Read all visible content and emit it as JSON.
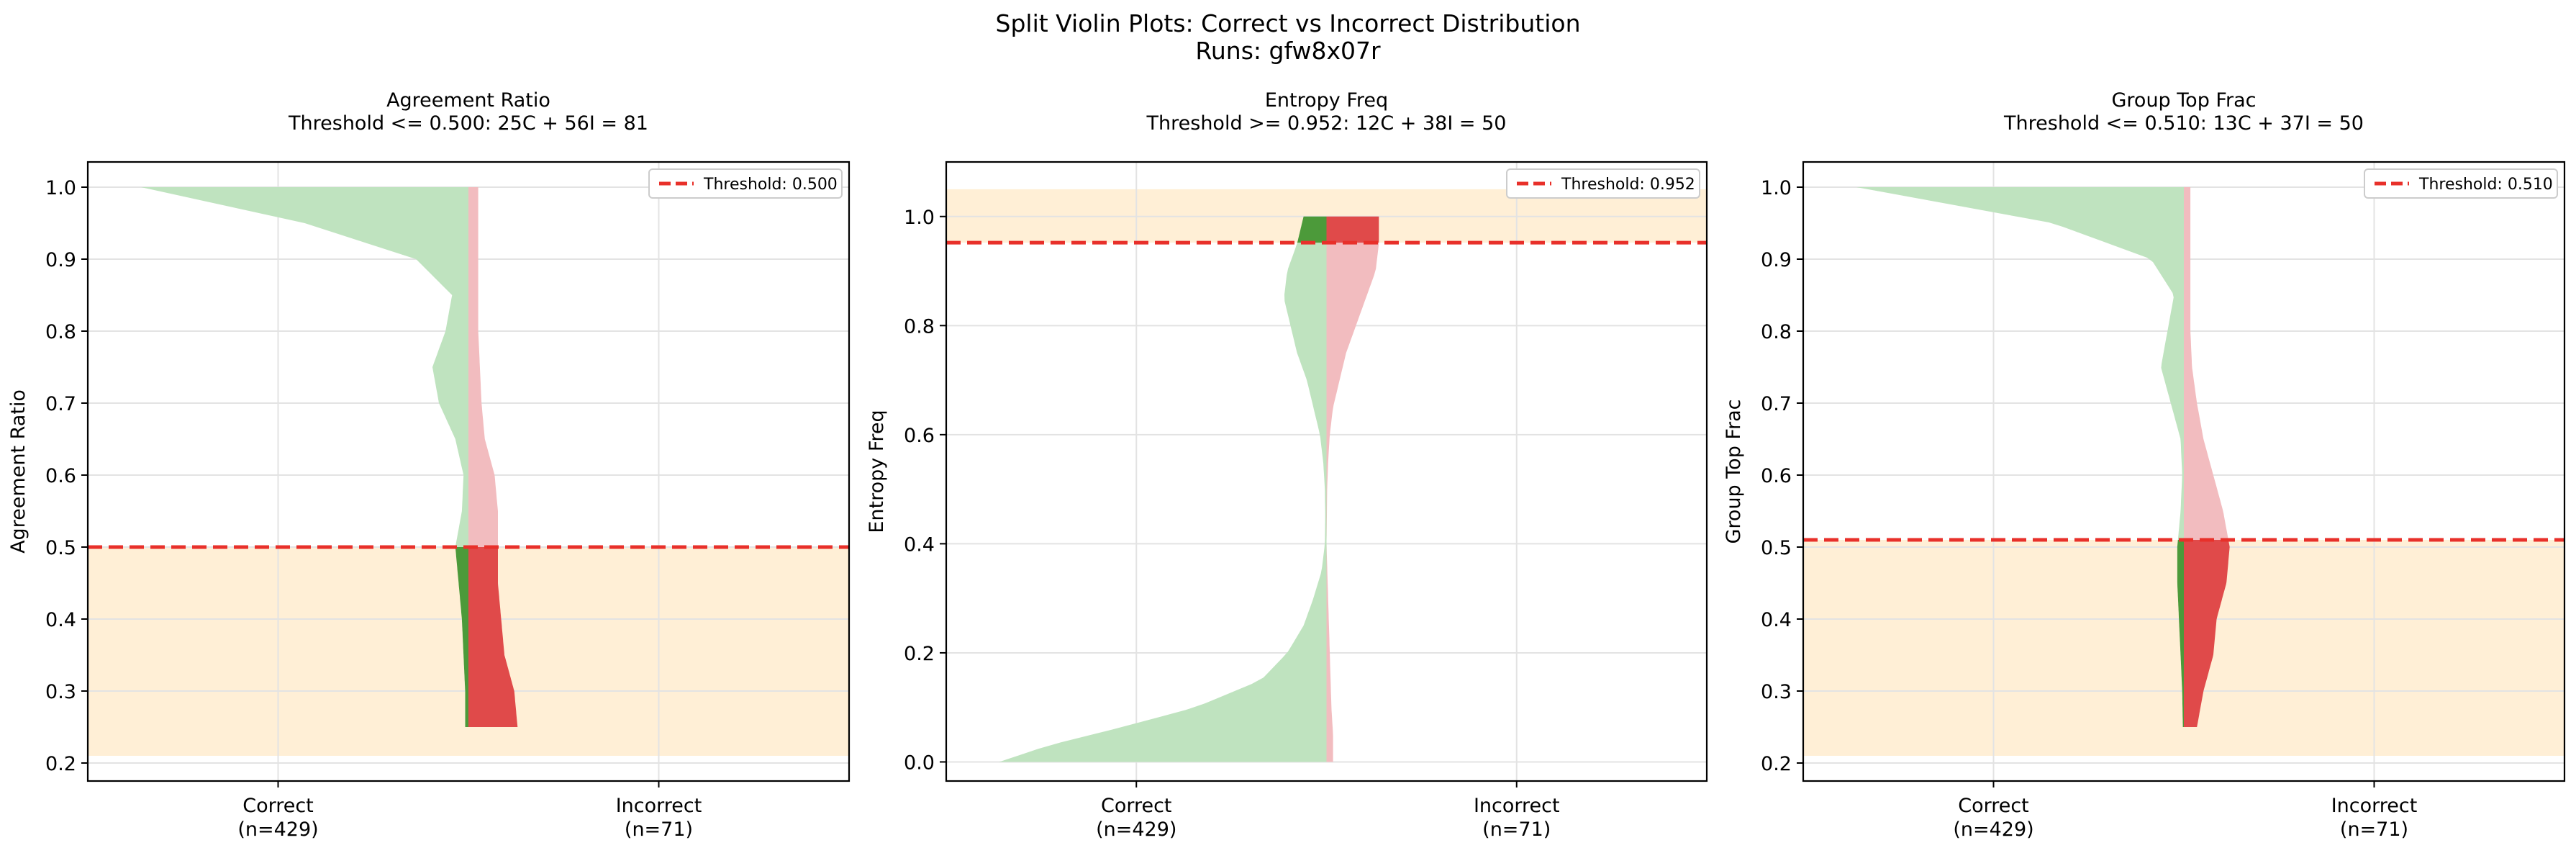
{
  "suptitle": "Split Violin Plots: Correct vs Incorrect Distribution",
  "subtitle": "Runs: gfw8x07r",
  "chart_data": [
    {
      "type": "split-violin",
      "title": "Agreement Ratio",
      "subtitle": "Threshold <= 0.500: 25C + 56I = 81",
      "ylabel": "Agreement Ratio",
      "categories": [
        "Correct\n(n=429)",
        "Incorrect\n(n=71)"
      ],
      "ylim": [
        0.175,
        1.035
      ],
      "yticks": [
        0.2,
        0.3,
        0.4,
        0.5,
        0.6,
        0.7,
        0.8,
        0.9,
        1.0
      ],
      "yticklabels": [
        "0.2",
        "0.3",
        "0.4",
        "0.5",
        "0.6",
        "0.7",
        "0.8",
        "0.9",
        "1.0"
      ],
      "threshold": 0.5,
      "threshold_dir": "<=",
      "band": [
        0.21,
        0.5
      ],
      "legend": "Threshold: 0.500",
      "legend_loc": "upper right",
      "grid": true,
      "series": [
        {
          "name": "Correct",
          "side": "left",
          "y": [
            0.25,
            0.3,
            0.35,
            0.4,
            0.45,
            0.5,
            0.55,
            0.6,
            0.65,
            0.7,
            0.75,
            0.8,
            0.85,
            0.9,
            0.95,
            1.0
          ],
          "width": [
            0.01,
            0.01,
            0.015,
            0.02,
            0.03,
            0.04,
            0.02,
            0.015,
            0.04,
            0.09,
            0.11,
            0.07,
            0.05,
            0.16,
            0.5,
            1.0
          ]
        },
        {
          "name": "Incorrect",
          "side": "right",
          "y": [
            0.25,
            0.3,
            0.35,
            0.4,
            0.45,
            0.5,
            0.55,
            0.6,
            0.65,
            0.7,
            0.75,
            0.8,
            0.85,
            0.9,
            0.95,
            1.0
          ],
          "width": [
            0.15,
            0.14,
            0.11,
            0.1,
            0.09,
            0.09,
            0.09,
            0.08,
            0.05,
            0.04,
            0.035,
            0.03,
            0.03,
            0.03,
            0.03,
            0.03
          ]
        }
      ]
    },
    {
      "type": "split-violin",
      "title": "Entropy Freq",
      "subtitle": "Threshold >= 0.952: 12C + 38I = 50",
      "ylabel": "Entropy Freq",
      "categories": [
        "Correct\n(n=429)",
        "Incorrect\n(n=71)"
      ],
      "ylim": [
        -0.035,
        1.1
      ],
      "yticks": [
        0.0,
        0.2,
        0.4,
        0.6,
        0.8,
        1.0
      ],
      "yticklabels": [
        "0.0",
        "0.2",
        "0.4",
        "0.6",
        "0.8",
        "1.0"
      ],
      "threshold": 0.952,
      "threshold_dir": ">=",
      "band": [
        0.952,
        1.05
      ],
      "legend": "Threshold: 0.952",
      "legend_loc": "upper right",
      "grid": true,
      "series": [
        {
          "name": "Correct",
          "side": "left",
          "y": [
            0.0,
            0.03,
            0.06,
            0.1,
            0.15,
            0.2,
            0.25,
            0.3,
            0.35,
            0.4,
            0.45,
            0.5,
            0.55,
            0.6,
            0.65,
            0.7,
            0.75,
            0.8,
            0.85,
            0.9,
            0.95,
            1.0
          ],
          "width": [
            1.0,
            0.85,
            0.65,
            0.4,
            0.2,
            0.12,
            0.07,
            0.04,
            0.015,
            0.005,
            0.004,
            0.005,
            0.01,
            0.02,
            0.04,
            0.06,
            0.09,
            0.11,
            0.13,
            0.12,
            0.09,
            0.07
          ]
        },
        {
          "name": "Incorrect",
          "side": "right",
          "y": [
            0.0,
            0.05,
            0.1,
            0.2,
            0.3,
            0.4,
            0.5,
            0.55,
            0.6,
            0.65,
            0.7,
            0.75,
            0.8,
            0.85,
            0.9,
            0.95,
            1.0
          ],
          "width": [
            0.02,
            0.02,
            0.015,
            0.01,
            0.005,
            0.0,
            0.002,
            0.005,
            0.01,
            0.02,
            0.04,
            0.06,
            0.09,
            0.12,
            0.15,
            0.16,
            0.16
          ]
        }
      ]
    },
    {
      "type": "split-violin",
      "title": "Group Top Frac",
      "subtitle": "Threshold <= 0.510: 13C + 37I = 50",
      "ylabel": "Group Top Frac",
      "categories": [
        "Correct\n(n=429)",
        "Incorrect\n(n=71)"
      ],
      "ylim": [
        0.175,
        1.035
      ],
      "yticks": [
        0.2,
        0.3,
        0.4,
        0.5,
        0.6,
        0.7,
        0.8,
        0.9,
        1.0
      ],
      "yticklabels": [
        "0.2",
        "0.3",
        "0.4",
        "0.5",
        "0.6",
        "0.7",
        "0.8",
        "0.9",
        "1.0"
      ],
      "threshold": 0.51,
      "threshold_dir": "<=",
      "band": [
        0.21,
        0.51
      ],
      "legend": "Threshold: 0.510",
      "legend_loc": "upper right",
      "grid": true,
      "series": [
        {
          "name": "Correct",
          "side": "left",
          "y": [
            0.25,
            0.3,
            0.35,
            0.4,
            0.45,
            0.5,
            0.55,
            0.6,
            0.65,
            0.7,
            0.75,
            0.8,
            0.85,
            0.9,
            0.95,
            1.0
          ],
          "width": [
            0.003,
            0.005,
            0.01,
            0.015,
            0.02,
            0.02,
            0.01,
            0.005,
            0.01,
            0.04,
            0.07,
            0.05,
            0.03,
            0.1,
            0.4,
            1.0
          ]
        },
        {
          "name": "Incorrect",
          "side": "right",
          "y": [
            0.25,
            0.3,
            0.35,
            0.4,
            0.45,
            0.5,
            0.55,
            0.6,
            0.65,
            0.7,
            0.75,
            0.8,
            0.85,
            0.9,
            0.95,
            1.0
          ],
          "width": [
            0.04,
            0.06,
            0.09,
            0.1,
            0.13,
            0.14,
            0.12,
            0.09,
            0.06,
            0.04,
            0.025,
            0.02,
            0.02,
            0.02,
            0.02,
            0.02
          ]
        }
      ]
    }
  ]
}
